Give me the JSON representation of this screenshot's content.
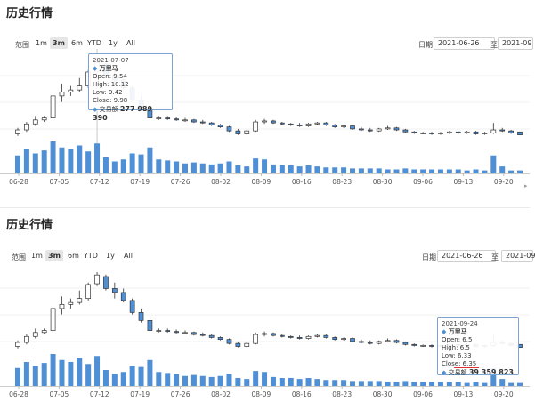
{
  "panels": [
    {
      "title": "历史行情",
      "range": {
        "label": "范围",
        "buttons": [
          "1m",
          "3m",
          "6m",
          "YTD",
          "1y",
          "All"
        ],
        "active": "3m"
      },
      "date": {
        "label": "日期",
        "from": "2021-06-26",
        "to_label": "至",
        "to": "2021-09"
      },
      "tooltip": {
        "date": "2021-07-07",
        "name": "万里马",
        "open_label": "Open:",
        "open": "9.54",
        "high_label": "High:",
        "high": "10.12",
        "low_label": "Low:",
        "low": "9.42",
        "close_label": "Close:",
        "close": "9.98",
        "vol_label": "交易额",
        "vol": "277 989 390"
      }
    },
    {
      "title": "历史行情",
      "range": {
        "label": "范围",
        "buttons": [
          "1m",
          "3m",
          "6m",
          "YTD",
          "1y",
          "All"
        ],
        "active": "3m"
      },
      "date": {
        "label": "日期",
        "from": "2021-06-26",
        "to_label": "至",
        "to": "2021-09"
      },
      "tooltip": {
        "date": "2021-09-24",
        "name": "万里马",
        "open_label": "Open:",
        "open": "6.5",
        "high_label": "High:",
        "high": "6.5",
        "low_label": "Low:",
        "low": "6.33",
        "close_label": "Close:",
        "close": "6.35",
        "vol_label": "交易额",
        "vol": "39 359 823"
      }
    }
  ],
  "chart_data": {
    "type": "candlestick",
    "x_ticks": [
      "06-28",
      "07-05",
      "07-12",
      "07-19",
      "07-26",
      "08-02",
      "08-09",
      "08-16",
      "08-23",
      "08-30",
      "09-06",
      "09-13",
      "09-20"
    ],
    "candles": [
      {
        "o": 6.4,
        "h": 6.7,
        "l": 6.3,
        "c": 6.6
      },
      {
        "o": 6.6,
        "h": 7.0,
        "l": 6.5,
        "c": 6.9
      },
      {
        "o": 6.9,
        "h": 7.3,
        "l": 6.8,
        "c": 7.1
      },
      {
        "o": 7.1,
        "h": 7.3,
        "l": 7.0,
        "c": 7.2
      },
      {
        "o": 7.2,
        "h": 8.4,
        "l": 7.1,
        "c": 8.3
      },
      {
        "o": 8.3,
        "h": 8.9,
        "l": 8.0,
        "c": 8.5
      },
      {
        "o": 8.5,
        "h": 8.8,
        "l": 8.3,
        "c": 8.6
      },
      {
        "o": 8.6,
        "h": 9.2,
        "l": 8.5,
        "c": 8.8
      },
      {
        "o": 8.8,
        "h": 9.6,
        "l": 8.7,
        "c": 9.5
      },
      {
        "o": 9.54,
        "h": 10.12,
        "l": 9.42,
        "c": 9.98
      },
      {
        "o": 9.9,
        "h": 10.0,
        "l": 9.2,
        "c": 9.3
      },
      {
        "o": 9.3,
        "h": 9.6,
        "l": 8.8,
        "c": 9.1
      },
      {
        "o": 9.1,
        "h": 9.3,
        "l": 8.6,
        "c": 8.7
      },
      {
        "o": 8.7,
        "h": 8.8,
        "l": 8.0,
        "c": 8.1
      },
      {
        "o": 8.1,
        "h": 8.3,
        "l": 7.6,
        "c": 7.7
      },
      {
        "o": 7.7,
        "h": 7.8,
        "l": 7.1,
        "c": 7.2
      },
      {
        "o": 7.2,
        "h": 7.3,
        "l": 7.1,
        "c": 7.2
      },
      {
        "o": 7.2,
        "h": 7.3,
        "l": 7.1,
        "c": 7.15
      },
      {
        "o": 7.15,
        "h": 7.25,
        "l": 7.05,
        "c": 7.1
      },
      {
        "o": 7.1,
        "h": 7.2,
        "l": 7.0,
        "c": 7.1
      },
      {
        "o": 7.1,
        "h": 7.15,
        "l": 6.95,
        "c": 7.0
      },
      {
        "o": 7.0,
        "h": 7.1,
        "l": 6.9,
        "c": 6.95
      },
      {
        "o": 6.95,
        "h": 7.0,
        "l": 6.8,
        "c": 6.85
      },
      {
        "o": 6.85,
        "h": 6.9,
        "l": 6.7,
        "c": 6.75
      },
      {
        "o": 6.75,
        "h": 6.8,
        "l": 6.5,
        "c": 6.55
      },
      {
        "o": 6.55,
        "h": 6.65,
        "l": 6.35,
        "c": 6.4
      },
      {
        "o": 6.4,
        "h": 6.6,
        "l": 6.35,
        "c": 6.55
      },
      {
        "o": 6.55,
        "h": 7.1,
        "l": 6.5,
        "c": 7.0
      },
      {
        "o": 7.0,
        "h": 7.15,
        "l": 6.9,
        "c": 7.05
      },
      {
        "o": 7.05,
        "h": 7.1,
        "l": 6.9,
        "c": 6.95
      },
      {
        "o": 6.95,
        "h": 7.0,
        "l": 6.85,
        "c": 6.9
      },
      {
        "o": 6.9,
        "h": 6.95,
        "l": 6.8,
        "c": 6.85
      },
      {
        "o": 6.85,
        "h": 6.95,
        "l": 6.75,
        "c": 6.8
      },
      {
        "o": 6.8,
        "h": 6.95,
        "l": 6.75,
        "c": 6.9
      },
      {
        "o": 6.9,
        "h": 7.0,
        "l": 6.85,
        "c": 6.95
      },
      {
        "o": 6.95,
        "h": 7.0,
        "l": 6.8,
        "c": 6.85
      },
      {
        "o": 6.85,
        "h": 6.9,
        "l": 6.7,
        "c": 6.75
      },
      {
        "o": 6.75,
        "h": 6.85,
        "l": 6.7,
        "c": 6.8
      },
      {
        "o": 6.8,
        "h": 6.85,
        "l": 6.6,
        "c": 6.65
      },
      {
        "o": 6.65,
        "h": 6.75,
        "l": 6.55,
        "c": 6.6
      },
      {
        "o": 6.6,
        "h": 6.7,
        "l": 6.5,
        "c": 6.55
      },
      {
        "o": 6.55,
        "h": 6.7,
        "l": 6.5,
        "c": 6.65
      },
      {
        "o": 6.65,
        "h": 6.8,
        "l": 6.6,
        "c": 6.7
      },
      {
        "o": 6.7,
        "h": 6.75,
        "l": 6.55,
        "c": 6.6
      },
      {
        "o": 6.6,
        "h": 6.65,
        "l": 6.45,
        "c": 6.5
      },
      {
        "o": 6.5,
        "h": 6.55,
        "l": 6.4,
        "c": 6.45
      },
      {
        "o": 6.45,
        "h": 6.5,
        "l": 6.38,
        "c": 6.45
      },
      {
        "o": 6.45,
        "h": 6.5,
        "l": 6.35,
        "c": 6.4
      },
      {
        "o": 6.4,
        "h": 6.5,
        "l": 6.35,
        "c": 6.45
      },
      {
        "o": 6.45,
        "h": 6.55,
        "l": 6.4,
        "c": 6.5
      },
      {
        "o": 6.5,
        "h": 6.55,
        "l": 6.4,
        "c": 6.45
      },
      {
        "o": 6.45,
        "h": 6.55,
        "l": 6.4,
        "c": 6.5
      },
      {
        "o": 6.5,
        "h": 6.55,
        "l": 6.35,
        "c": 6.4
      },
      {
        "o": 6.4,
        "h": 6.5,
        "l": 6.35,
        "c": 6.45
      },
      {
        "o": 6.45,
        "h": 6.95,
        "l": 6.4,
        "c": 6.6
      },
      {
        "o": 6.6,
        "h": 6.7,
        "l": 6.5,
        "c": 6.55
      },
      {
        "o": 6.55,
        "h": 6.6,
        "l": 6.4,
        "c": 6.45
      },
      {
        "o": 6.5,
        "h": 6.5,
        "l": 6.33,
        "c": 6.35
      }
    ],
    "volume": [
      18,
      24,
      20,
      23,
      32,
      26,
      24,
      28,
      22,
      30,
      16,
      12,
      14,
      20,
      19,
      26,
      14,
      13,
      12,
      10,
      11,
      10,
      9,
      10,
      12,
      8,
      7,
      15,
      14,
      9,
      8,
      8,
      7,
      8,
      7,
      6,
      6,
      6,
      5,
      5,
      5,
      5,
      4,
      4,
      5,
      4,
      4,
      4,
      4,
      4,
      4,
      3,
      4,
      3,
      18,
      7,
      3,
      3
    ],
    "ylim": [
      6.2,
      10.3
    ],
    "colors": {
      "up": "#ffffff",
      "down": "#4f8fd6",
      "stroke": "#333333",
      "volume": "#4f8fd6"
    }
  }
}
